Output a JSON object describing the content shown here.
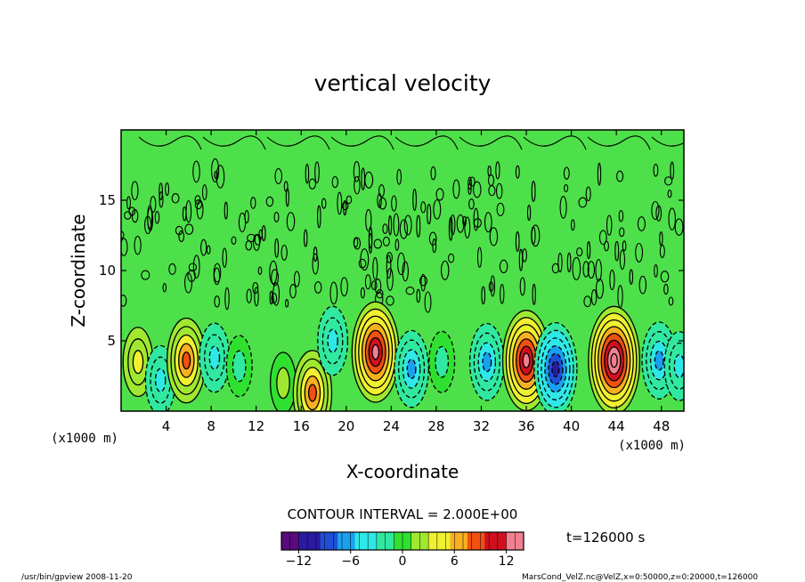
{
  "chart_data": {
    "type": "heatmap",
    "title": "vertical velocity",
    "xlabel": "X-coordinate",
    "ylabel": "Z-coordinate",
    "x_unit_left": "(x1000 m)",
    "x_unit_right": "(x1000 m)",
    "xlim": [
      0,
      50
    ],
    "ylim": [
      0,
      20
    ],
    "x_ticks": [
      4,
      8,
      12,
      16,
      20,
      24,
      28,
      32,
      36,
      40,
      44,
      48
    ],
    "y_ticks": [
      5,
      10,
      15
    ],
    "contour_interval_text": "CONTOUR INTERVAL = 2.000E+00",
    "time_label": "t=126000 s",
    "colorbar": {
      "range": [
        -14,
        14
      ],
      "ticks": [
        -12,
        -6,
        0,
        6,
        12
      ],
      "tick_labels": [
        "−12",
        "−6",
        "0",
        "6",
        "12"
      ],
      "colors": [
        "#5a0a7a",
        "#2a1aa0",
        "#1f4fd6",
        "#1aa0ee",
        "#2ee8e8",
        "#30e8a0",
        "#30e030",
        "#a0e830",
        "#f0f030",
        "#f8b020",
        "#f05010",
        "#d01020",
        "#f08090"
      ]
    },
    "cells": [
      {
        "x": 1.5,
        "z": 3.5,
        "value": 4
      },
      {
        "x": 3.5,
        "z": 2.2,
        "value": -4
      },
      {
        "x": 5.8,
        "z": 3.6,
        "value": 8
      },
      {
        "x": 8.3,
        "z": 3.8,
        "value": -4
      },
      {
        "x": 10.5,
        "z": 3.2,
        "value": -2
      },
      {
        "x": 14.4,
        "z": 2.0,
        "value": 2
      },
      {
        "x": 17.0,
        "z": 1.3,
        "value": 8
      },
      {
        "x": 18.8,
        "z": 5.0,
        "value": -4
      },
      {
        "x": 22.6,
        "z": 4.2,
        "value": 12
      },
      {
        "x": 25.8,
        "z": 3.0,
        "value": -6
      },
      {
        "x": 28.5,
        "z": 3.5,
        "value": -2
      },
      {
        "x": 32.5,
        "z": 3.5,
        "value": -6
      },
      {
        "x": 36.0,
        "z": 3.6,
        "value": 12
      },
      {
        "x": 38.6,
        "z": 3.0,
        "value": -10
      },
      {
        "x": 43.8,
        "z": 3.6,
        "value": 14
      },
      {
        "x": 47.8,
        "z": 3.6,
        "value": -6
      },
      {
        "x": 49.6,
        "z": 3.2,
        "value": -4
      }
    ]
  },
  "footer": {
    "left": "/usr/bin/gpview   2008-11-20",
    "right": "MarsCond_VelZ.nc@VelZ,x=0:50000,z=0:20000,t=126000"
  }
}
